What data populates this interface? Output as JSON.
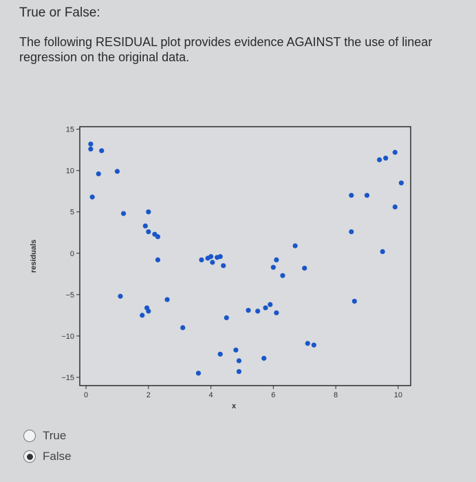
{
  "question": {
    "header": "True or False:",
    "text": "The following RESIDUAL plot provides evidence AGAINST the use of linear regression on the original data."
  },
  "options": [
    {
      "label": "True",
      "selected": false
    },
    {
      "label": "False",
      "selected": true
    }
  ],
  "chart_data": {
    "type": "scatter",
    "xlabel": "x",
    "ylabel": "residuals",
    "xlim": [
      -0.2,
      10.4
    ],
    "ylim": [
      -16,
      15.3
    ],
    "xticks": [
      0,
      2,
      4,
      6,
      8,
      10
    ],
    "yticks": [
      15,
      10,
      5,
      0,
      -5,
      -10,
      -15
    ],
    "grid": false,
    "point_color": "#1a56c8",
    "points": [
      [
        0.15,
        13.2
      ],
      [
        0.15,
        12.6
      ],
      [
        0.5,
        12.4
      ],
      [
        0.4,
        9.6
      ],
      [
        0.2,
        6.8
      ],
      [
        1.0,
        9.9
      ],
      [
        1.2,
        4.8
      ],
      [
        1.1,
        -5.2
      ],
      [
        2.0,
        5.0
      ],
      [
        1.9,
        3.3
      ],
      [
        2.2,
        2.3
      ],
      [
        2.3,
        2.0
      ],
      [
        2.0,
        2.6
      ],
      [
        2.3,
        -0.8
      ],
      [
        2.0,
        -7.0
      ],
      [
        1.8,
        -7.5
      ],
      [
        1.95,
        -6.6
      ],
      [
        2.6,
        -5.6
      ],
      [
        3.1,
        -9.0
      ],
      [
        3.6,
        -14.5
      ],
      [
        3.7,
        -0.8
      ],
      [
        3.9,
        -0.6
      ],
      [
        4.05,
        -1.1
      ],
      [
        4.0,
        -0.4
      ],
      [
        4.2,
        -0.5
      ],
      [
        4.3,
        -0.4
      ],
      [
        4.4,
        -1.5
      ],
      [
        4.3,
        -12.2
      ],
      [
        4.5,
        -7.8
      ],
      [
        4.8,
        -11.7
      ],
      [
        4.9,
        -14.3
      ],
      [
        4.9,
        -13.0
      ],
      [
        5.2,
        -6.9
      ],
      [
        5.5,
        -7.0
      ],
      [
        5.75,
        -6.6
      ],
      [
        5.9,
        -6.2
      ],
      [
        6.1,
        -7.2
      ],
      [
        5.7,
        -12.7
      ],
      [
        6.0,
        -1.7
      ],
      [
        6.1,
        -0.8
      ],
      [
        6.3,
        -2.7
      ],
      [
        6.7,
        0.9
      ],
      [
        7.0,
        -1.8
      ],
      [
        7.1,
        -10.9
      ],
      [
        7.3,
        -11.1
      ],
      [
        8.5,
        7.0
      ],
      [
        9.0,
        7.0
      ],
      [
        8.5,
        2.6
      ],
      [
        8.6,
        -5.8
      ],
      [
        9.4,
        11.3
      ],
      [
        9.6,
        11.5
      ],
      [
        9.9,
        12.2
      ],
      [
        10.1,
        8.5
      ],
      [
        9.9,
        5.6
      ],
      [
        9.5,
        0.2
      ]
    ]
  }
}
